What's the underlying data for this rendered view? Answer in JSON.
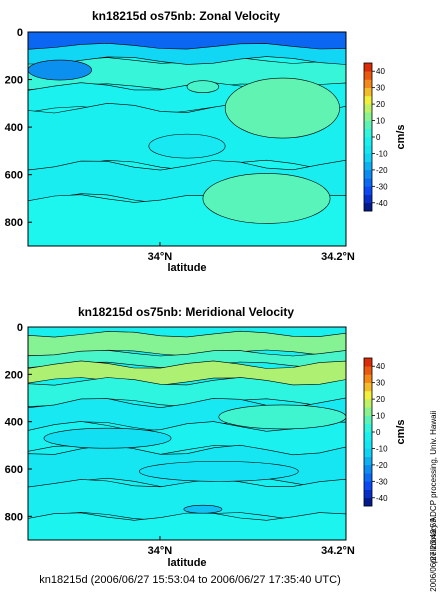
{
  "colormap": {
    "stops": [
      "#000f6e",
      "#0a3ff5",
      "#0c8cf0",
      "#12dcf4",
      "#1df6ee",
      "#7df29a",
      "#f1f03c",
      "#f47c16",
      "#d41505"
    ],
    "contour_line": "#000000"
  },
  "chart_data": [
    {
      "type": "heatmap",
      "title": "kn18215d os75nb: Zonal Velocity",
      "xlabel": "latitude",
      "ylabel": "",
      "x_tick_labels": [
        "34°N",
        "34.2°N"
      ],
      "y_ticks": [
        0,
        200,
        400,
        600,
        800
      ],
      "y_tick_labels": [
        "0",
        "200",
        "400",
        "600",
        "800"
      ],
      "ylim": [
        0,
        900
      ],
      "y_inverted": true,
      "colorbar": {
        "label": "cm/s",
        "range": [
          -45,
          45
        ],
        "ticks": [
          -40,
          -30,
          -20,
          -10,
          0,
          10,
          20,
          30,
          40
        ],
        "tick_labels": [
          "-40",
          "-30",
          "-20",
          "-10",
          "0",
          "10",
          "20",
          "30",
          "40"
        ]
      },
      "grid": false
    },
    {
      "type": "heatmap",
      "title": "kn18215d os75nb: Meridional Velocity",
      "xlabel": "latitude",
      "ylabel": "",
      "x_tick_labels": [
        "34°N",
        "34.2°N"
      ],
      "y_ticks": [
        0,
        200,
        400,
        600,
        800
      ],
      "y_tick_labels": [
        "0",
        "200",
        "400",
        "600",
        "800"
      ],
      "ylim": [
        0,
        900
      ],
      "y_inverted": true,
      "colorbar": {
        "label": "cm/s",
        "range": [
          -45,
          45
        ],
        "ticks": [
          -40,
          -30,
          -20,
          -10,
          0,
          10,
          20,
          30,
          40
        ],
        "tick_labels": [
          "-40",
          "-30",
          "-20",
          "-10",
          "0",
          "10",
          "20",
          "30",
          "40"
        ]
      },
      "grid": false
    }
  ],
  "footer": {
    "caption": "kn18215d (2006/06/27 15:53:04 to 2006/06/27 17:35:40 UTC)",
    "side_note": "preliminary ADCP processing,   Univ. Hawaii",
    "timestamp": "2006/06/27 23:43:59"
  }
}
